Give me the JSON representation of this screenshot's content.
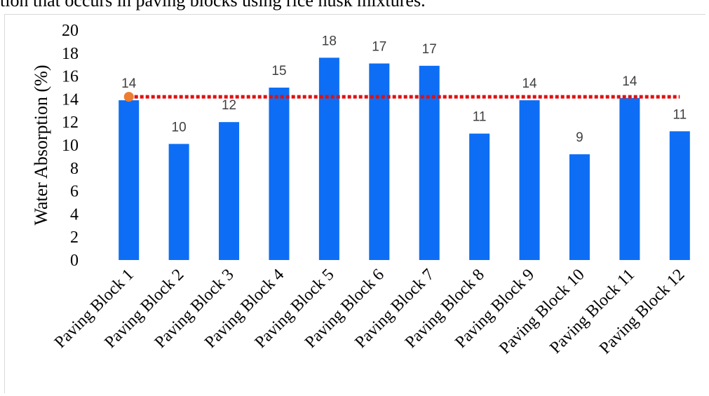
{
  "caption": "tion that occurs in paving blocks using rice husk mixtures.",
  "chart_data": {
    "type": "bar",
    "categories": [
      "Paving Block 1",
      "Paving Block 2",
      "Paving Block 3",
      "Paving Block 4",
      "Paving Block 5",
      "Paving Block 6",
      "Paving Block 7",
      "Paving Block 8",
      "Paving Block 9",
      "Paving Block 10",
      "Paving Block 11",
      "Paving Block 12"
    ],
    "values": [
      13.9,
      10.1,
      12.0,
      15.0,
      17.6,
      17.1,
      16.9,
      11.0,
      13.9,
      9.2,
      14.1,
      11.2
    ],
    "data_labels": [
      "14",
      "10",
      "12",
      "15",
      "18",
      "17",
      "17",
      "11",
      "14",
      "9",
      "14",
      "11"
    ],
    "ylabel": "Water Absorption (%)",
    "yticks": [
      "0",
      "2",
      "4",
      "6",
      "8",
      "10",
      "12",
      "14",
      "16",
      "18",
      "20"
    ],
    "ylim": [
      0,
      20
    ],
    "reference_line": {
      "value": 14.2,
      "style": "dotted"
    },
    "reference_marker": {
      "category": "Paving Block 1",
      "value": 14.2
    },
    "colors": {
      "bar": "#0d6ef5",
      "reference_line": "#e01010",
      "marker": "#ed7d31"
    }
  }
}
